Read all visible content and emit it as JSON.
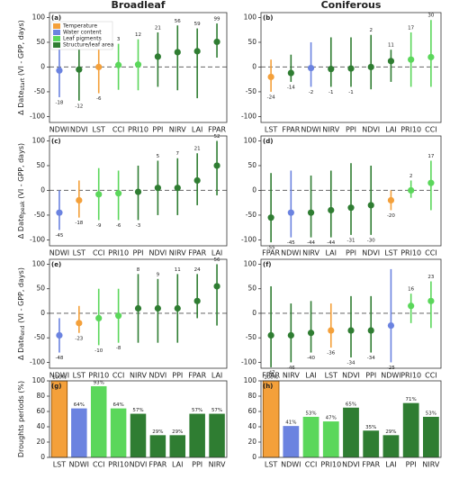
{
  "chart_data": [
    {
      "type": "errorbar",
      "title": "Broadleaf",
      "panel_label": "(a)",
      "ylabel": {
        "main": "Δ Date",
        "sub": "start",
        "rest": " (VI - GPP, days)"
      },
      "legend": [
        {
          "name": "Temperature",
          "color": "#f4a03a"
        },
        {
          "name": "Water content",
          "color": "#6b83e0"
        },
        {
          "name": "Leaf pigments",
          "color": "#5bd75b"
        },
        {
          "name": "Structure/leaf area",
          "color": "#2f7d32"
        }
      ],
      "legend_loc": "upper left",
      "categories": [
        "NDWI",
        "NDVI",
        "LST",
        "CCI",
        "PRI10",
        "PPI",
        "NIRV",
        "LAI",
        "FPAR"
      ],
      "colors": [
        "#6b83e0",
        "#2f7d32",
        "#f4a03a",
        "#5bd75b",
        "#5bd75b",
        "#2f7d32",
        "#2f7d32",
        "#2f7d32",
        "#2f7d32"
      ],
      "values": [
        -7,
        -5,
        0,
        4,
        5,
        21,
        30,
        32,
        51
      ],
      "low": [
        -61,
        -68,
        -53,
        -46,
        -47,
        -40,
        -47,
        -63,
        19
      ],
      "high": [
        67,
        49,
        51,
        47,
        56,
        70,
        84,
        78,
        88
      ],
      "annotations": [
        -18,
        -12,
        -6,
        3,
        12,
        21,
        56,
        59,
        99
      ],
      "ylim": [
        -112,
        110
      ],
      "yticks": [
        -100,
        -50,
        0,
        50,
        100
      ]
    },
    {
      "type": "errorbar",
      "title": "Coniferous",
      "panel_label": "(b)",
      "categories": [
        "LST",
        "FPAR",
        "NDWI",
        "NIRV",
        "PPI",
        "NDVI",
        "LAI",
        "PRI10",
        "CCI"
      ],
      "colors": [
        "#f4a03a",
        "#2f7d32",
        "#6b83e0",
        "#2f7d32",
        "#2f7d32",
        "#2f7d32",
        "#2f7d32",
        "#5bd75b",
        "#5bd75b"
      ],
      "values": [
        -20,
        -12,
        -2,
        -4,
        -3,
        0,
        12,
        15,
        20
      ],
      "low": [
        -50,
        -30,
        -40,
        -40,
        -40,
        -45,
        -30,
        -40,
        -40
      ],
      "high": [
        15,
        25,
        50,
        60,
        60,
        65,
        35,
        70,
        95
      ],
      "annotations": [
        -24,
        -14,
        -2,
        -1,
        -1,
        2,
        11,
        17,
        30
      ],
      "ylim": [
        -112,
        110
      ],
      "yticks": [
        -100,
        -50,
        0,
        50,
        100
      ]
    },
    {
      "type": "errorbar",
      "panel_label": "(c)",
      "ylabel": {
        "main": "Δ Date",
        "sub": "peak",
        "rest": " (VI - GPP, days)"
      },
      "categories": [
        "NDWI",
        "LST",
        "CCI",
        "PRI10",
        "PPI",
        "NDVI",
        "NIRV",
        "FPAR",
        "LAI"
      ],
      "colors": [
        "#6b83e0",
        "#f4a03a",
        "#5bd75b",
        "#5bd75b",
        "#2f7d32",
        "#2f7d32",
        "#2f7d32",
        "#2f7d32",
        "#2f7d32"
      ],
      "values": [
        -45,
        -20,
        -8,
        -6,
        -3,
        5,
        5,
        20,
        50
      ],
      "low": [
        -80,
        -55,
        -60,
        -60,
        -60,
        -50,
        -50,
        -30,
        -10
      ],
      "high": [
        0,
        20,
        45,
        40,
        50,
        60,
        65,
        75,
        100
      ],
      "annotations": [
        -45,
        -18,
        -9,
        -6,
        -3,
        5,
        7,
        21,
        52
      ],
      "ylim": [
        -112,
        110
      ],
      "yticks": [
        -100,
        -50,
        0,
        50,
        100
      ]
    },
    {
      "type": "errorbar",
      "panel_label": "(d)",
      "categories": [
        "FPAR",
        "NDWI",
        "NIRV",
        "LAI",
        "PPI",
        "NDVI",
        "LST",
        "PRI10",
        "CCI"
      ],
      "colors": [
        "#2f7d32",
        "#6b83e0",
        "#2f7d32",
        "#2f7d32",
        "#2f7d32",
        "#2f7d32",
        "#f4a03a",
        "#5bd75b",
        "#5bd75b"
      ],
      "values": [
        -55,
        -45,
        -45,
        -40,
        -35,
        -30,
        -20,
        0,
        15
      ],
      "low": [
        -105,
        -95,
        -95,
        -95,
        -90,
        -90,
        -40,
        -15,
        -40
      ],
      "high": [
        35,
        40,
        30,
        40,
        55,
        50,
        0,
        20,
        60
      ],
      "annotations": [
        -55,
        -45,
        -44,
        -44,
        -31,
        -30,
        -20,
        2,
        17
      ],
      "ylim": [
        -112,
        110
      ],
      "yticks": [
        -100,
        -50,
        0,
        50,
        100
      ]
    },
    {
      "type": "errorbar",
      "panel_label": "(e)",
      "ylabel": {
        "main": "Δ Date",
        "sub": "end",
        "rest": " (VI - GPP, days)"
      },
      "categories": [
        "NDWI",
        "LST",
        "PRI10",
        "CCI",
        "NIRV",
        "NDVI",
        "PPI",
        "FPAR",
        "LAI"
      ],
      "colors": [
        "#6b83e0",
        "#f4a03a",
        "#5bd75b",
        "#5bd75b",
        "#2f7d32",
        "#2f7d32",
        "#2f7d32",
        "#2f7d32",
        "#2f7d32"
      ],
      "values": [
        -45,
        -20,
        -10,
        -5,
        10,
        10,
        10,
        25,
        55
      ],
      "low": [
        -80,
        -40,
        -65,
        -60,
        -60,
        -60,
        -60,
        -10,
        -25
      ],
      "high": [
        -10,
        15,
        50,
        50,
        80,
        70,
        80,
        80,
        100
      ],
      "annotations": [
        -48,
        -23,
        -10,
        -8,
        8,
        9,
        11,
        24,
        56
      ],
      "ylim": [
        -112,
        110
      ],
      "yticks": [
        -100,
        -50,
        0,
        50,
        100
      ]
    },
    {
      "type": "errorbar",
      "panel_label": "(f)",
      "categories": [
        "FPAR",
        "NIRV",
        "LAI",
        "LST",
        "NDVI",
        "PPI",
        "NDWI",
        "PRI10",
        "CCI"
      ],
      "colors": [
        "#2f7d32",
        "#2f7d32",
        "#2f7d32",
        "#f4a03a",
        "#2f7d32",
        "#2f7d32",
        "#6b83e0",
        "#5bd75b",
        "#5bd75b"
      ],
      "values": [
        -45,
        -45,
        -40,
        -35,
        -35,
        -35,
        -25,
        15,
        25
      ],
      "low": [
        -110,
        -100,
        -80,
        -70,
        -90,
        -80,
        -100,
        -20,
        -30
      ],
      "high": [
        55,
        20,
        25,
        20,
        35,
        35,
        90,
        40,
        65
      ],
      "annotations": [
        -47,
        -46,
        -40,
        -36,
        -34,
        -34,
        -25,
        16,
        23
      ],
      "ylim": [
        -112,
        110
      ],
      "yticks": [
        -100,
        -50,
        0,
        50,
        100
      ]
    },
    {
      "type": "bar",
      "panel_label": "(g)",
      "ylabel": {
        "main": "Droughts periods (%)"
      },
      "categories": [
        "LST",
        "NDWI",
        "CCI",
        "PRI10",
        "NDVI",
        "FPAR",
        "LAI",
        "PPI",
        "NIRV"
      ],
      "colors": [
        "#f4a03a",
        "#6b83e0",
        "#5bd75b",
        "#5bd75b",
        "#2f7d32",
        "#2f7d32",
        "#2f7d32",
        "#2f7d32",
        "#2f7d32"
      ],
      "values": [
        100,
        64,
        93,
        64,
        57,
        29,
        29,
        57,
        57
      ],
      "value_labels": [
        "100%",
        "64%",
        "93%",
        "64%",
        "57%",
        "29%",
        "29%",
        "57%",
        "57%"
      ],
      "ylim": [
        0,
        100
      ],
      "yticks": [
        0,
        20,
        40,
        60,
        80,
        100
      ]
    },
    {
      "type": "bar",
      "panel_label": "(h)",
      "categories": [
        "LST",
        "NDWI",
        "CCI",
        "PRI10",
        "NDVI",
        "FPAR",
        "LAI",
        "PPI",
        "NIRV"
      ],
      "colors": [
        "#f4a03a",
        "#6b83e0",
        "#5bd75b",
        "#5bd75b",
        "#2f7d32",
        "#2f7d32",
        "#2f7d32",
        "#2f7d32",
        "#2f7d32"
      ],
      "values": [
        100,
        41,
        53,
        47,
        65,
        35,
        29,
        71,
        53
      ],
      "value_labels": [
        "100%",
        "41%",
        "53%",
        "47%",
        "65%",
        "35%",
        "29%",
        "71%",
        "53%"
      ],
      "ylim": [
        0,
        100
      ],
      "yticks": [
        0,
        20,
        40,
        60,
        80,
        100
      ]
    }
  ]
}
